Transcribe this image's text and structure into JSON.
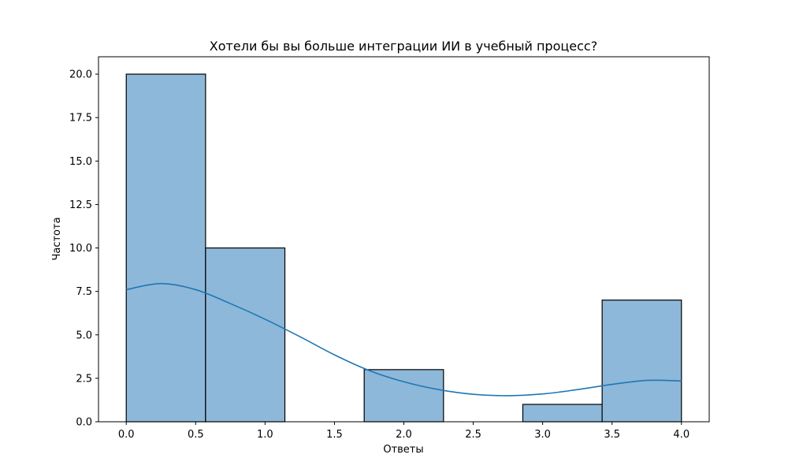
{
  "chart_data": {
    "type": "bar",
    "subtype": "histogram_with_kde",
    "title": "Хотели бы вы больше интеграции ИИ в учебный процесс?",
    "xlabel": "Ответы",
    "ylabel": "Частота",
    "xlim": [
      -0.2,
      4.2
    ],
    "ylim": [
      0,
      21
    ],
    "xticks": [
      "0.0",
      "0.5",
      "1.0",
      "1.5",
      "2.0",
      "2.5",
      "3.0",
      "3.5",
      "4.0"
    ],
    "yticks": [
      "0.0",
      "2.5",
      "5.0",
      "7.5",
      "10.0",
      "12.5",
      "15.0",
      "17.5",
      "20.0"
    ],
    "bins": [
      {
        "start": 0.0,
        "end": 0.5714,
        "count": 20
      },
      {
        "start": 0.5714,
        "end": 1.1429,
        "count": 10
      },
      {
        "start": 1.1429,
        "end": 1.7143,
        "count": 0
      },
      {
        "start": 1.7143,
        "end": 2.2857,
        "count": 3
      },
      {
        "start": 2.2857,
        "end": 2.8571,
        "count": 0
      },
      {
        "start": 2.8571,
        "end": 3.4286,
        "count": 1
      },
      {
        "start": 3.4286,
        "end": 4.0,
        "count": 7
      }
    ],
    "kde": {
      "x": [
        0.0,
        0.25,
        0.5,
        0.75,
        1.0,
        1.25,
        1.5,
        1.75,
        2.0,
        2.25,
        2.5,
        2.75,
        3.0,
        3.25,
        3.5,
        3.75,
        4.0
      ],
      "y": [
        7.6,
        7.95,
        7.6,
        6.8,
        5.9,
        4.9,
        3.85,
        2.95,
        2.3,
        1.85,
        1.58,
        1.5,
        1.6,
        1.85,
        2.15,
        2.38,
        2.35
      ]
    },
    "colors": {
      "bar_fill": "#8db8d9",
      "bar_edge": "#000000",
      "kde_line": "#1f77b4"
    },
    "grid": false,
    "legend": "none"
  }
}
